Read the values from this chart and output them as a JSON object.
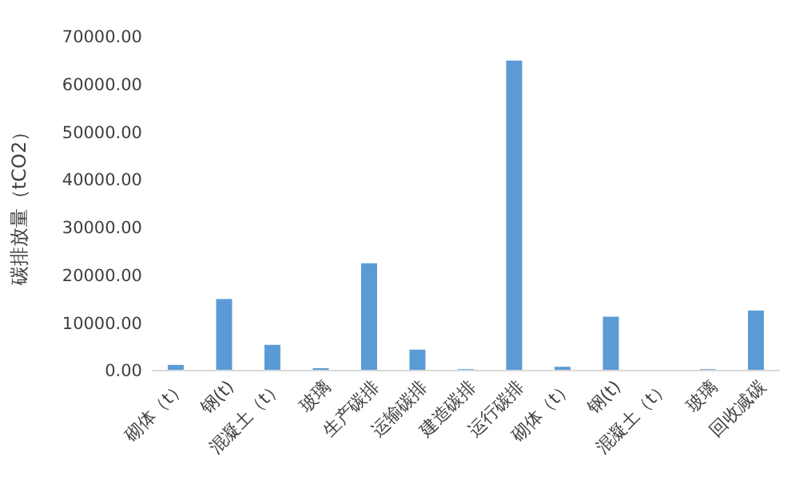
{
  "chart_data": {
    "type": "bar",
    "ylabel": "碳排放量（tCO2）",
    "categories": [
      "砌体（t）",
      "钢(t)",
      "混凝土（t）",
      "玻璃",
      "生产碳排",
      "运输碳排",
      "建造碳排",
      "运行碳排",
      "砌体（t）",
      "钢(t)",
      "混凝土（t）",
      "玻璃",
      "回收减碳"
    ],
    "values": [
      1200,
      15000,
      5400,
      500,
      22500,
      4400,
      300,
      65000,
      800,
      11300,
      0,
      300,
      12600
    ],
    "color": "#5b9bd5",
    "ylim": [
      0,
      70000
    ],
    "yticks": [
      {
        "value": 0,
        "label": "0.00"
      },
      {
        "value": 10000,
        "label": "10000.00"
      },
      {
        "value": 20000,
        "label": "20000.00"
      },
      {
        "value": 30000,
        "label": "30000.00"
      },
      {
        "value": 40000,
        "label": "40000.00"
      },
      {
        "value": 50000,
        "label": "50000.00"
      },
      {
        "value": 60000,
        "label": "60000.00"
      },
      {
        "value": 70000,
        "label": "70000.00"
      }
    ],
    "grid": false
  }
}
